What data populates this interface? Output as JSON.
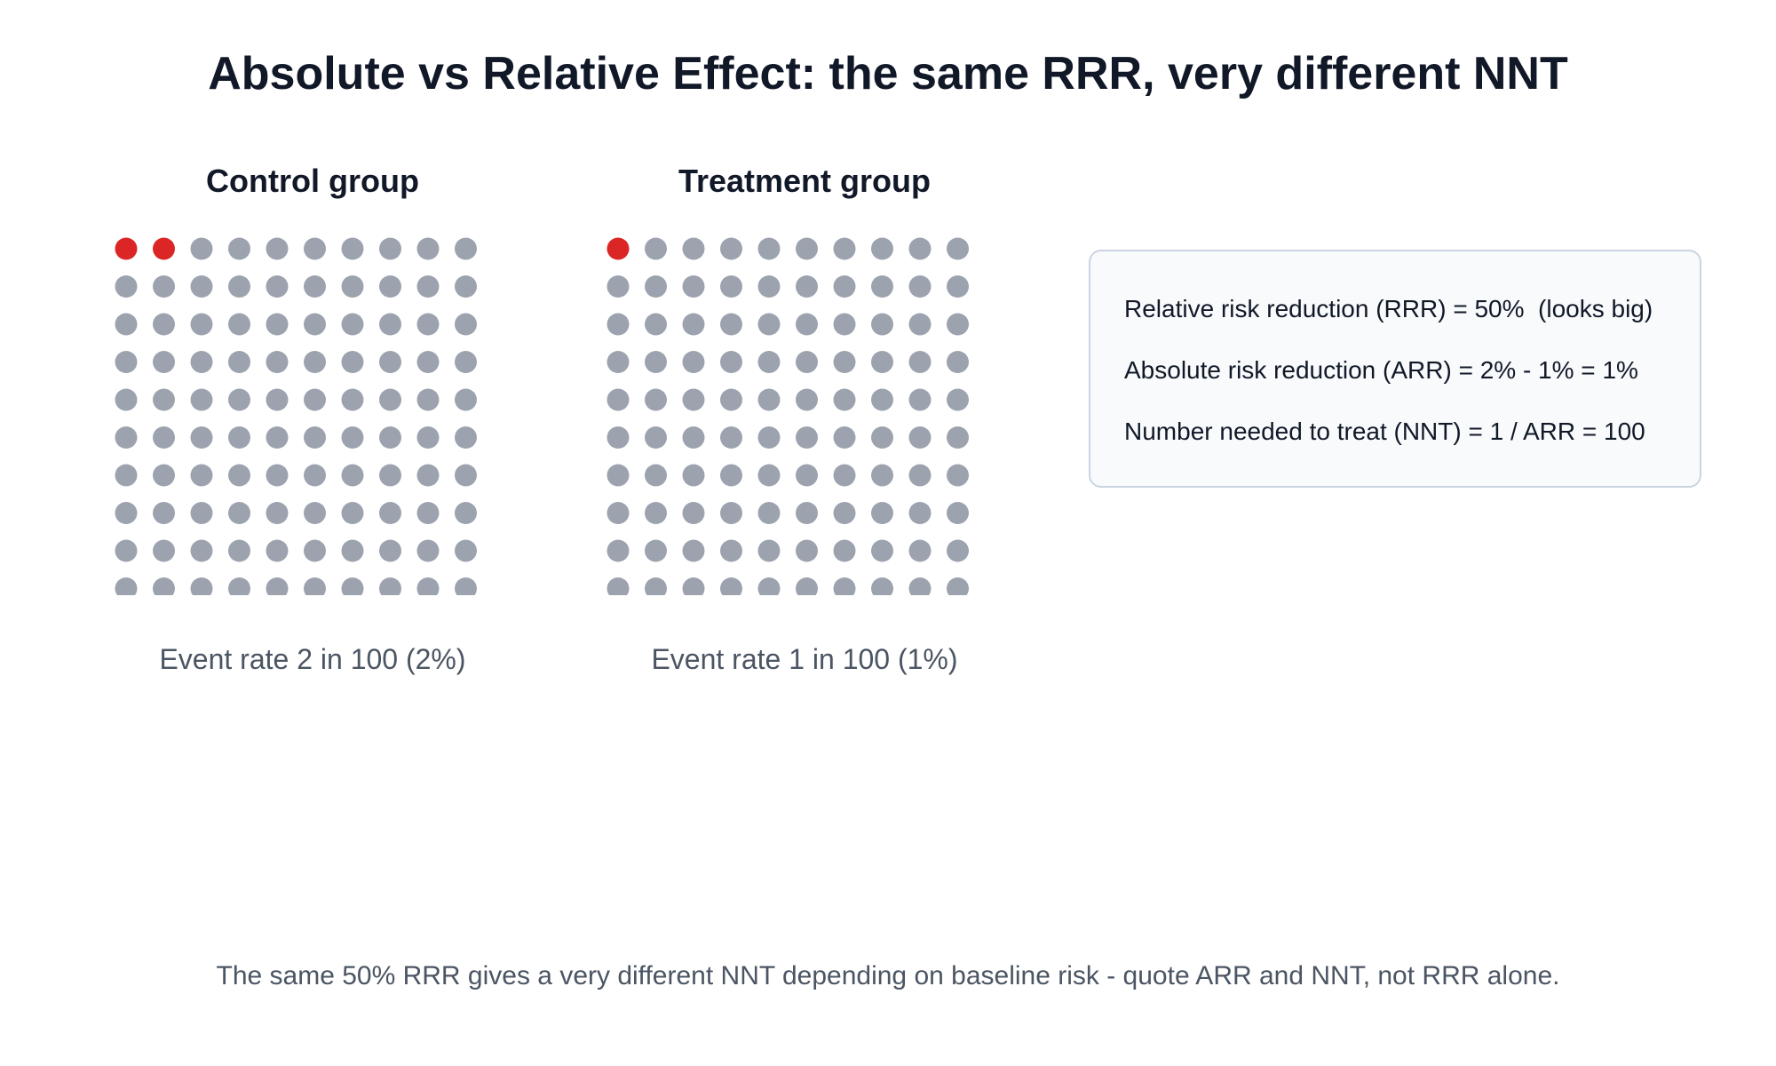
{
  "title": "Absolute vs Relative Effect: the same RRR, very different NNT",
  "colors": {
    "event": "#dc2626",
    "no_event": "#9ca3af",
    "box_background": "#f8fafc",
    "box_border": "#cbd5e1"
  },
  "chart_data": [
    {
      "type": "waffle",
      "title": "Control group",
      "total": 100,
      "rows": 10,
      "columns": 10,
      "events": 2,
      "caption": "Event rate 2 in 100 (2%)"
    },
    {
      "type": "waffle",
      "title": "Treatment group",
      "total": 100,
      "rows": 10,
      "columns": 10,
      "events": 1,
      "caption": "Event rate 1 in 100 (1%)"
    }
  ],
  "stats": {
    "rrr": "Relative risk reduction (RRR) = 50%  (looks big)",
    "arr": "Absolute risk reduction (ARR) = 2% - 1% = 1%",
    "nnt": "Number needed to treat (NNT) = 1 / ARR = 100"
  },
  "footnote": "The same 50% RRR gives a very different NNT depending on baseline risk - quote ARR and NNT, not RRR alone."
}
